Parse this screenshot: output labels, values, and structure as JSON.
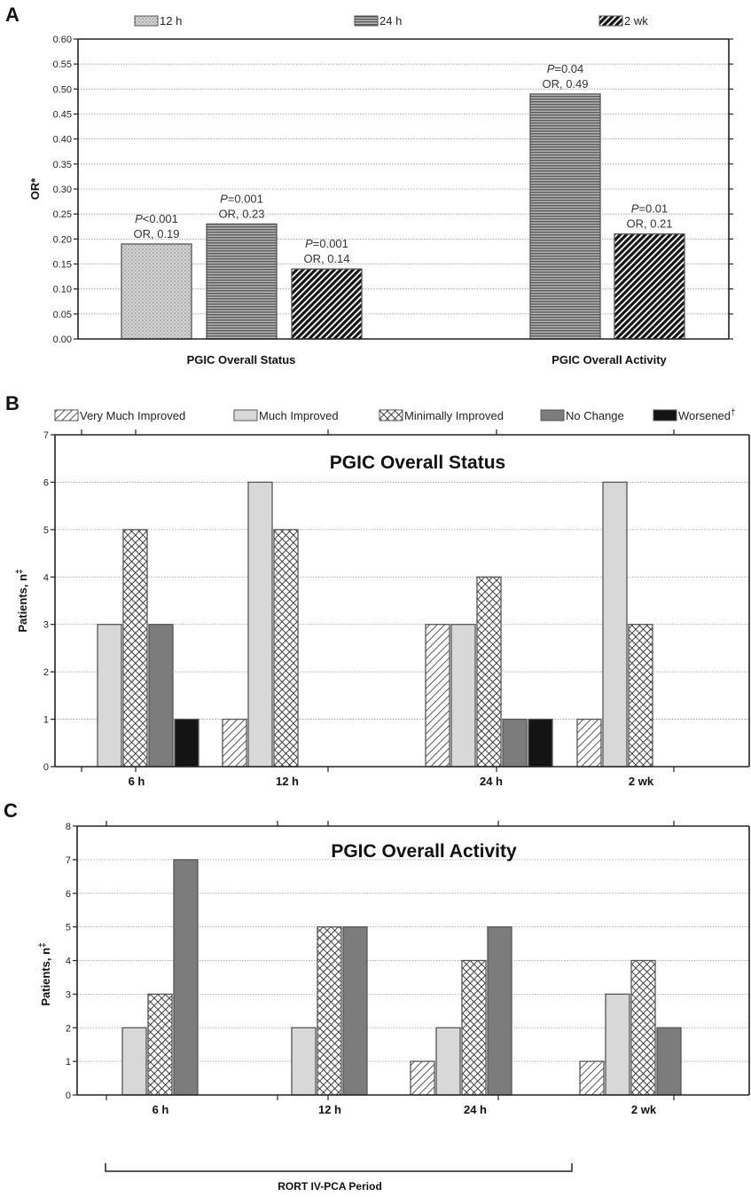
{
  "figure": {
    "bracket_label": "RORT IV-PCA Period",
    "colors": {
      "very_much_improved": "#ffffff",
      "much_improved": "#d8d8d8",
      "minimally_improved": "#ffffff",
      "no_change": "#7c7c7c",
      "worsened": "#141414",
      "axis": "#222222",
      "grid": "#9a9a9a"
    }
  },
  "chart_data": [
    {
      "panel": "A",
      "type": "bar",
      "title": "",
      "xlabel": "",
      "ylabel": "OR*",
      "ylim": [
        0,
        0.6
      ],
      "yticks": [
        "0.00",
        "0.05",
        "0.10",
        "0.15",
        "0.20",
        "0.25",
        "0.30",
        "0.35",
        "0.40",
        "0.45",
        "0.50",
        "0.55",
        "0.60"
      ],
      "grid": true,
      "legend": "top",
      "categories": [
        "PGIC Overall Status",
        "PGIC Overall Activity"
      ],
      "series": [
        {
          "name": "12 h",
          "values": [
            0.19,
            null
          ]
        },
        {
          "name": "24 h",
          "values": [
            0.23,
            0.49
          ]
        },
        {
          "name": "2 wk",
          "values": [
            0.14,
            0.21
          ]
        }
      ],
      "annotations": [
        {
          "p_prefix": "P",
          "p_text": "<0.001",
          "or_text": "OR, 0.19"
        },
        {
          "p_prefix": "P",
          "p_text": "=0.001",
          "or_text": "OR, 0.23"
        },
        {
          "p_prefix": "P",
          "p_text": "=0.001",
          "or_text": "OR, 0.14"
        },
        {
          "p_prefix": "P",
          "p_text": "=0.04",
          "or_text": "OR, 0.49"
        },
        {
          "p_prefix": "P",
          "p_text": "=0.01",
          "or_text": "OR, 0.21"
        }
      ]
    },
    {
      "panel": "B",
      "type": "bar",
      "title": "PGIC Overall Status",
      "xlabel": "",
      "ylabel": "Patients, n",
      "ylabel_sup": "‡",
      "ylim": [
        0,
        7
      ],
      "yticks": [
        "0",
        "1",
        "2",
        "3",
        "4",
        "5",
        "6",
        "7"
      ],
      "grid": true,
      "legend": "top",
      "categories": [
        "6 h",
        "12 h",
        "24 h",
        "2 wk"
      ],
      "series": [
        {
          "name": "Very Much Improved",
          "values": [
            0,
            1,
            3,
            1
          ]
        },
        {
          "name": "Much Improved",
          "values": [
            3,
            6,
            3,
            6
          ]
        },
        {
          "name": "Minimally Improved",
          "values": [
            5,
            5,
            4,
            3
          ]
        },
        {
          "name": "No Change",
          "values": [
            3,
            0,
            1,
            0
          ]
        },
        {
          "name": "Worsened",
          "name_sup": "†",
          "values": [
            1,
            0,
            1,
            0
          ]
        }
      ]
    },
    {
      "panel": "C",
      "type": "bar",
      "title": "PGIC Overall Activity",
      "xlabel": "",
      "ylabel": "Patients, n",
      "ylabel_sup": "‡",
      "ylim": [
        0,
        8
      ],
      "yticks": [
        "0",
        "1",
        "2",
        "3",
        "4",
        "5",
        "6",
        "7",
        "8"
      ],
      "grid": true,
      "legend": "none",
      "categories": [
        "6 h",
        "12 h",
        "24 h",
        "2 wk"
      ],
      "series": [
        {
          "name": "Very Much Improved",
          "values": [
            0,
            0,
            1,
            1
          ]
        },
        {
          "name": "Much Improved",
          "values": [
            2,
            2,
            2,
            3
          ]
        },
        {
          "name": "Minimally Improved",
          "values": [
            3,
            5,
            4,
            4
          ]
        },
        {
          "name": "No Change",
          "values": [
            7,
            5,
            5,
            2
          ]
        },
        {
          "name": "Worsened",
          "values": [
            0,
            0,
            0,
            0
          ]
        }
      ]
    }
  ]
}
